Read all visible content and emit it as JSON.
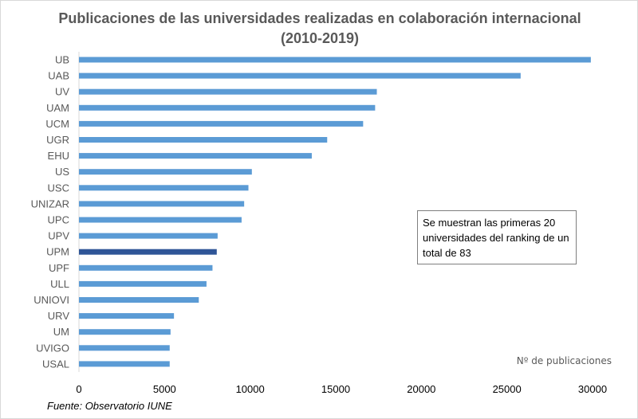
{
  "chart_data": {
    "type": "bar",
    "orientation": "horizontal",
    "title": "Publicaciones de las universidades realizadas en colaboración internacional (2010-2019)",
    "title_lines": [
      "Publicaciones de las universidades realizadas en colaboración internacional",
      "(2010-2019)"
    ],
    "xlabel": "Nº de publicaciones",
    "xlim": [
      0,
      30000
    ],
    "xticks": [
      0,
      5000,
      10000,
      15000,
      20000,
      25000,
      30000
    ],
    "grid": false,
    "categories": [
      "UB",
      "UAB",
      "UV",
      "UAM",
      "UCM",
      "UGR",
      "EHU",
      "US",
      "USC",
      "UNIZAR",
      "UPC",
      "UPV",
      "UPM",
      "UPF",
      "ULL",
      "UNIOVI",
      "URV",
      "UM",
      "UVIGO",
      "USAL"
    ],
    "values": [
      29900,
      25800,
      17400,
      17300,
      16600,
      14500,
      13600,
      10100,
      9900,
      9650,
      9500,
      8100,
      8050,
      7800,
      7450,
      7000,
      5550,
      5350,
      5300,
      5300
    ],
    "highlight": "UPM",
    "colors": {
      "bar": "#5b9bd5",
      "highlight": "#2f5597",
      "text": "#595959"
    },
    "annotation": "Se muestran las primeras 20 universidades del ranking de un total de 83"
  },
  "source": "Fuente: Observatorio IUNE"
}
